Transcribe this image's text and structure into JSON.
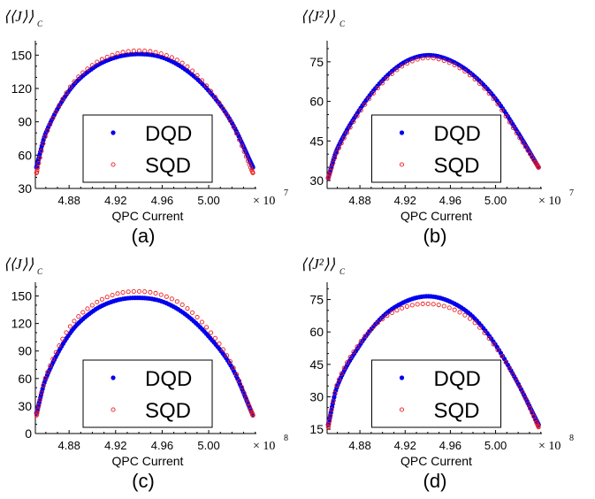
{
  "colors": {
    "dqd": "#0000ee",
    "sqd": "#ee1c1c",
    "axis": "#000000",
    "legend_border": "#000000"
  },
  "chart_data": [
    {
      "type": "scatter",
      "panel_label": "(a)",
      "ylabel": "⟨⟨J⟩⟩",
      "ylabel_sub": "C",
      "xlabel": "QPC Current",
      "x_multiplier": "× 10",
      "x_exponent": "7",
      "xticks": [
        "4.88",
        "4.92",
        "4.96",
        "5.00"
      ],
      "xtick_values": [
        4.88,
        4.92,
        4.96,
        5.0
      ],
      "yticks": [
        "30",
        "60",
        "90",
        "120",
        "150"
      ],
      "ytick_values": [
        30,
        60,
        90,
        120,
        150
      ],
      "xlim": [
        4.851,
        5.041
      ],
      "ylim": [
        30,
        163
      ],
      "grid": false,
      "legend_placement": "bottom-center",
      "series": [
        {
          "name": "DQD",
          "marker": "filled-circle",
          "color": "#0000ee",
          "points": [
            [
              4.852,
              49
            ],
            [
              4.86,
              80
            ],
            [
              4.88,
              118
            ],
            [
              4.9,
              138
            ],
            [
              4.92,
              148
            ],
            [
              4.94,
              151
            ],
            [
              4.96,
              148
            ],
            [
              4.98,
              137
            ],
            [
              5.0,
              118
            ],
            [
              5.02,
              89
            ],
            [
              5.038,
              49
            ]
          ]
        },
        {
          "name": "SQD",
          "marker": "open-circle",
          "color": "#ee1c1c",
          "points": [
            [
              4.852,
              44
            ],
            [
              4.86,
              78
            ],
            [
              4.88,
              120
            ],
            [
              4.9,
              141
            ],
            [
              4.92,
              151
            ],
            [
              4.94,
              154
            ],
            [
              4.96,
              151
            ],
            [
              4.98,
              141
            ],
            [
              5.0,
              120
            ],
            [
              5.02,
              88
            ],
            [
              5.038,
              44
            ]
          ]
        }
      ]
    },
    {
      "type": "scatter",
      "panel_label": "(b)",
      "ylabel": "⟨⟨J²⟩⟩",
      "ylabel_sub": "C",
      "xlabel": "QPC Current",
      "x_multiplier": "× 10",
      "x_exponent": "7",
      "xticks": [
        "4.88",
        "4.92",
        "4.96",
        "5.00"
      ],
      "xtick_values": [
        4.88,
        4.92,
        4.96,
        5.0
      ],
      "yticks": [
        "30",
        "45",
        "60",
        "75"
      ],
      "ytick_values": [
        30,
        45,
        60,
        75
      ],
      "xlim": [
        4.851,
        5.041
      ],
      "ylim": [
        27,
        83
      ],
      "grid": false,
      "legend_placement": "bottom-center",
      "series": [
        {
          "name": "DQD",
          "marker": "filled-circle",
          "color": "#0000ee",
          "points": [
            [
              4.852,
              31
            ],
            [
              4.86,
              42
            ],
            [
              4.88,
              57
            ],
            [
              4.9,
              68
            ],
            [
              4.92,
              75
            ],
            [
              4.94,
              77.5
            ],
            [
              4.96,
              75.5
            ],
            [
              4.98,
              70
            ],
            [
              5.0,
              61
            ],
            [
              5.02,
              48
            ],
            [
              5.038,
              35
            ]
          ]
        },
        {
          "name": "SQD",
          "marker": "open-circle",
          "color": "#ee1c1c",
          "points": [
            [
              4.852,
              31
            ],
            [
              4.86,
              41
            ],
            [
              4.88,
              56
            ],
            [
              4.9,
              67
            ],
            [
              4.92,
              74
            ],
            [
              4.94,
              76.5
            ],
            [
              4.96,
              74.5
            ],
            [
              4.98,
              69
            ],
            [
              5.0,
              60
            ],
            [
              5.02,
              47
            ],
            [
              5.038,
              35
            ]
          ]
        }
      ]
    },
    {
      "type": "scatter",
      "panel_label": "(c)",
      "ylabel": "⟨⟨J⟩⟩",
      "ylabel_sub": "C",
      "xlabel": "QPC Current",
      "x_multiplier": "× 10",
      "x_exponent": "8",
      "xticks": [
        "4.88",
        "4.92",
        "4.96",
        "5.00"
      ],
      "xtick_values": [
        4.88,
        4.92,
        4.96,
        5.0
      ],
      "yticks": [
        "0",
        "30",
        "60",
        "90",
        "120",
        "150"
      ],
      "ytick_values": [
        0,
        30,
        60,
        90,
        120,
        150
      ],
      "xlim": [
        4.851,
        5.041
      ],
      "ylim": [
        0,
        165
      ],
      "grid": false,
      "legend_placement": "bottom-center",
      "series": [
        {
          "name": "DQD",
          "marker": "filled-circle",
          "color": "#0000ee",
          "points": [
            [
              4.852,
              22
            ],
            [
              4.86,
              60
            ],
            [
              4.88,
              108
            ],
            [
              4.9,
              133
            ],
            [
              4.92,
              145
            ],
            [
              4.94,
              148
            ],
            [
              4.96,
              144
            ],
            [
              4.98,
              130
            ],
            [
              5.0,
              106
            ],
            [
              5.02,
              72
            ],
            [
              5.038,
              20
            ]
          ]
        },
        {
          "name": "SQD",
          "marker": "open-circle",
          "color": "#ee1c1c",
          "points": [
            [
              4.852,
              20
            ],
            [
              4.86,
              62
            ],
            [
              4.88,
              115
            ],
            [
              4.9,
              140
            ],
            [
              4.92,
              152
            ],
            [
              4.94,
              155
            ],
            [
              4.96,
              151
            ],
            [
              4.98,
              138
            ],
            [
              5.0,
              113
            ],
            [
              5.02,
              75
            ],
            [
              5.038,
              20
            ]
          ]
        }
      ]
    },
    {
      "type": "scatter",
      "panel_label": "(d)",
      "ylabel": "⟨⟨J²⟩⟩",
      "ylabel_sub": "C",
      "xlabel": "QPC Current",
      "x_multiplier": "× 10",
      "x_exponent": "8",
      "xticks": [
        "4.88",
        "4.92",
        "4.96",
        "5.00"
      ],
      "xtick_values": [
        4.88,
        4.92,
        4.96,
        5.0
      ],
      "yticks": [
        "15",
        "30",
        "45",
        "60",
        "75"
      ],
      "ytick_values": [
        15,
        30,
        45,
        60,
        75
      ],
      "xlim": [
        4.851,
        5.041
      ],
      "ylim": [
        13,
        83
      ],
      "grid": false,
      "legend_placement": "bottom-center",
      "series": [
        {
          "name": "DQD",
          "marker": "filled-circle",
          "color": "#0000ee",
          "points": [
            [
              4.852,
              17
            ],
            [
              4.86,
              35
            ],
            [
              4.88,
              54
            ],
            [
              4.9,
              67
            ],
            [
              4.92,
              74
            ],
            [
              4.94,
              76.5
            ],
            [
              4.96,
              74
            ],
            [
              4.98,
              67
            ],
            [
              5.0,
              54
            ],
            [
              5.02,
              36
            ],
            [
              5.038,
              17
            ]
          ]
        },
        {
          "name": "SQD",
          "marker": "open-circle",
          "color": "#ee1c1c",
          "points": [
            [
              4.852,
              16
            ],
            [
              4.86,
              36
            ],
            [
              4.88,
              55
            ],
            [
              4.9,
              66
            ],
            [
              4.92,
              71.5
            ],
            [
              4.94,
              73
            ],
            [
              4.96,
              71
            ],
            [
              4.98,
              65
            ],
            [
              5.0,
              53
            ],
            [
              5.02,
              36
            ],
            [
              5.038,
              16
            ]
          ]
        }
      ]
    }
  ]
}
